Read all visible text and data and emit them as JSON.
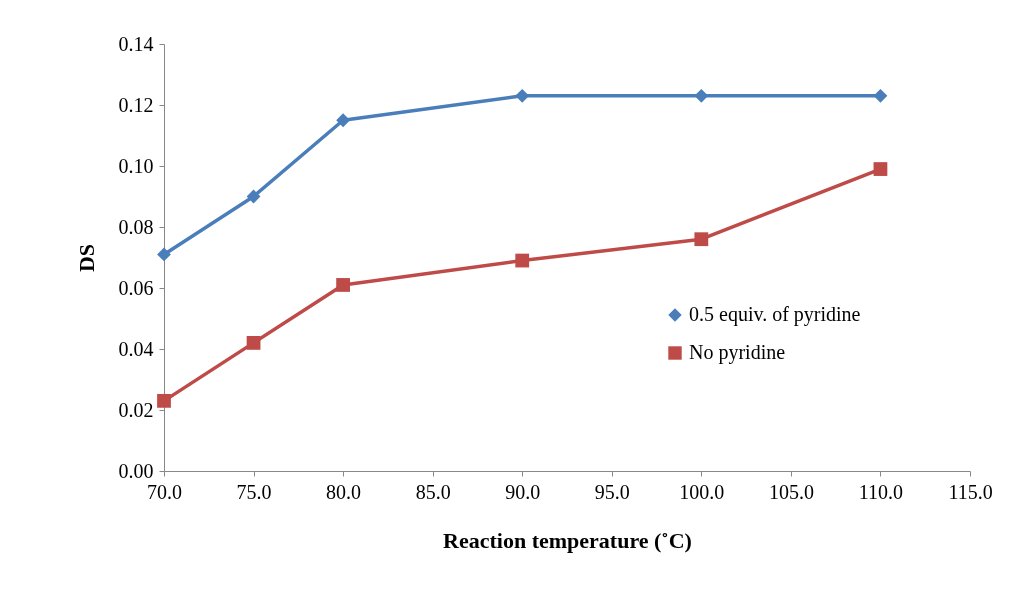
{
  "chart_data": {
    "type": "line",
    "xlabel": "Reaction temperature (˚C)",
    "ylabel": "DS",
    "x": [
      70,
      75,
      80,
      90,
      100,
      110
    ],
    "xlim": [
      70,
      115
    ],
    "xticks": [
      {
        "value": 70,
        "label": "70.0"
      },
      {
        "value": 75,
        "label": "75.0"
      },
      {
        "value": 80,
        "label": "80.0"
      },
      {
        "value": 85,
        "label": "85.0"
      },
      {
        "value": 90,
        "label": "90.0"
      },
      {
        "value": 95,
        "label": "95.0"
      },
      {
        "value": 100,
        "label": "100.0"
      },
      {
        "value": 105,
        "label": "105.0"
      },
      {
        "value": 110,
        "label": "110.0"
      },
      {
        "value": 115,
        "label": "115.0"
      }
    ],
    "ylim": [
      0,
      0.14
    ],
    "yticks": [
      {
        "value": 0,
        "label": "0.00"
      },
      {
        "value": 0.02,
        "label": "0.02"
      },
      {
        "value": 0.04,
        "label": "0.04"
      },
      {
        "value": 0.06,
        "label": "0.06"
      },
      {
        "value": 0.08,
        "label": "0.08"
      },
      {
        "value": 0.1,
        "label": "0.10"
      },
      {
        "value": 0.12,
        "label": "0.12"
      },
      {
        "value": 0.14,
        "label": "0.14"
      }
    ],
    "series": [
      {
        "name": "0.5 equiv. of pyridine",
        "color": "#4a7ebb",
        "marker": "diamond",
        "values": [
          0.071,
          0.09,
          0.115,
          0.123,
          0.123,
          0.123
        ]
      },
      {
        "name": "No pyridine",
        "color": "#be4b48",
        "marker": "square",
        "values": [
          0.023,
          0.042,
          0.061,
          0.069,
          0.076,
          0.099
        ]
      }
    ],
    "legend": "right",
    "grid": false,
    "line_style": "solid"
  }
}
